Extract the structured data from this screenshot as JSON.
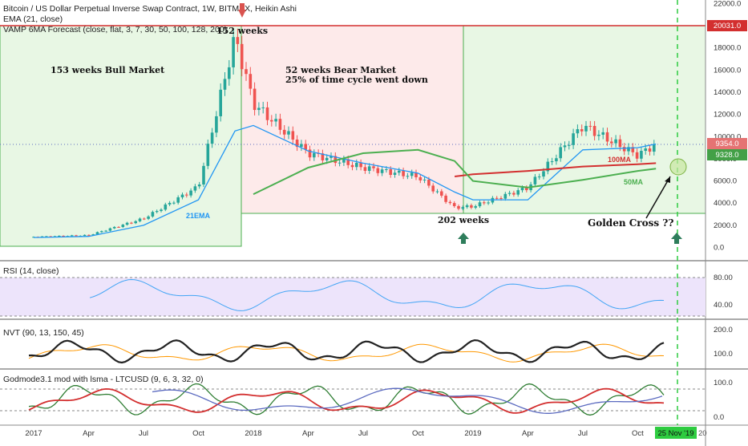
{
  "header": {
    "title": "Bitcoin / US Dollar Perpetual Inverse Swap Contract, 1W, BITMEX, Heikin Ashi",
    "ema_label": "EMA (21, close)",
    "vamp_label": "VAMP 6MA Forecast (close, flat, 3, 7, 30, 50, 100, 128, 200)"
  },
  "colors": {
    "bull": "#26a69a",
    "bear": "#ef5350",
    "ema": "#2196f3",
    "ma50": "#4caf50",
    "ma100": "#d32f2f",
    "rsi": "#42a5f5",
    "nvt": "#222222",
    "nvt_signal": "#ff9800",
    "bull_zone": "#e8f7e4",
    "bear_zone": "#fdeaea"
  },
  "annotations": {
    "bull_market": "153 weeks Bull Market",
    "bear_market_1": "52 weeks Bear Market",
    "bear_market_2": "25% of time cycle went down",
    "weeks_152": "152 weeks",
    "weeks_202": "202 weeks",
    "golden_cross": "Golden Cross ??",
    "ema21": "21EMA",
    "ma100": "100MA",
    "ma50": "50MA"
  },
  "price_badges": {
    "high": "20031.0",
    "last": "9354.0",
    "ma_value": "9328.0"
  },
  "panes": {
    "rsi": {
      "label": "RSI (14, close)",
      "ticks": [
        "80.00",
        "40.00"
      ]
    },
    "nvt": {
      "label": "NVT (90, 13, 150, 45)",
      "ticks": [
        "200.0",
        "100.0"
      ]
    },
    "godmode": {
      "label": "Godmode3.1 mod with lsma - LTCUSD (9, 6, 3, 32, 0)",
      "ticks": [
        "100.0",
        "0.0"
      ]
    }
  },
  "time_axis": {
    "labels": [
      "2017",
      "Apr",
      "Jul",
      "Oct",
      "2018",
      "Apr",
      "Jul",
      "Oct",
      "2019",
      "Apr",
      "Jul",
      "Oct"
    ],
    "current_date": "25 Nov '19",
    "partial": "20"
  },
  "chart_data": {
    "type": "line",
    "symbol": "BTCUSD",
    "interval": "1W",
    "x": [
      "2017-01",
      "2017-04",
      "2017-07",
      "2017-10",
      "2017-12",
      "2018-01",
      "2018-04",
      "2018-07",
      "2018-10",
      "2018-12",
      "2019-01",
      "2019-04",
      "2019-07",
      "2019-10",
      "2019-11"
    ],
    "series": [
      {
        "name": "Heikin Ashi",
        "values": [
          950,
          1100,
          2600,
          5500,
          19000,
          13000,
          8500,
          7200,
          6400,
          3600,
          3700,
          5400,
          11000,
          8300,
          9354
        ]
      },
      {
        "name": "EMA (21, close)",
        "values": [
          900,
          1000,
          2000,
          4300,
          10500,
          11000,
          8700,
          7600,
          6700,
          5000,
          4300,
          4300,
          8800,
          9000,
          9328
        ]
      },
      {
        "name": "100MA",
        "values": [
          null,
          null,
          null,
          null,
          null,
          null,
          null,
          null,
          null,
          6400,
          6600,
          6900,
          7300,
          7500,
          7600
        ]
      },
      {
        "name": "50MA",
        "values": [
          null,
          null,
          null,
          null,
          null,
          4800,
          7200,
          8500,
          8800,
          7800,
          6000,
          5400,
          6100,
          6900,
          7100
        ]
      }
    ],
    "yticks": [
      "22000.0",
      "20000.0",
      "18000.0",
      "16000.0",
      "14000.0",
      "12000.0",
      "10000.0",
      "8000.0",
      "6000.0",
      "4000.0",
      "2000.0",
      "0.0"
    ],
    "ylim": [
      0,
      22500
    ],
    "reference_lines": {
      "high": 20031,
      "bull_zone_floor": 3000
    },
    "grid": false
  }
}
